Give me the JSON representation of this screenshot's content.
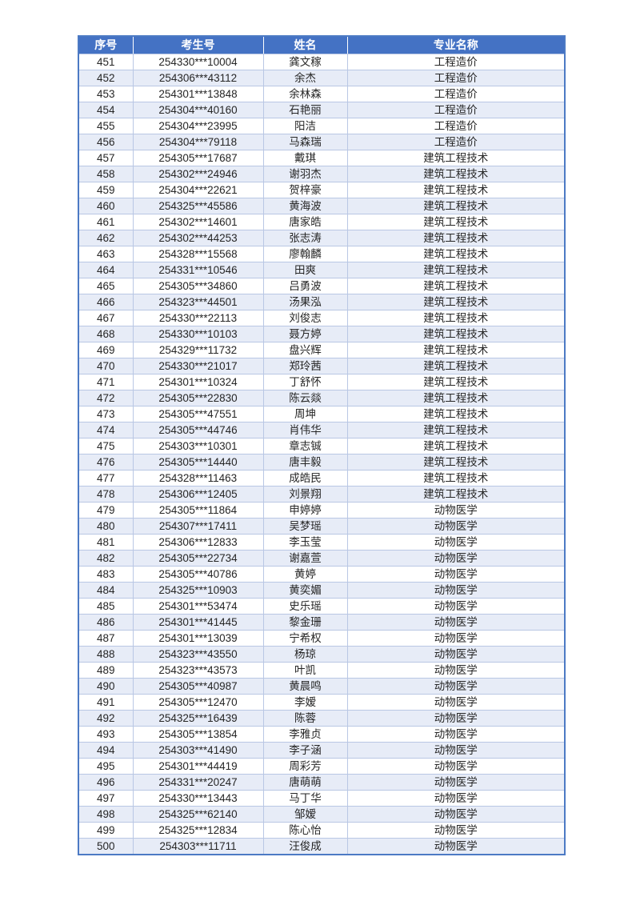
{
  "colors": {
    "header_bg": "#4472C4",
    "header_text": "#FFFFFF",
    "band_bg": "#E7ECF7",
    "grid_border": "#B9C7E4",
    "outer_border": "#4C7AC4",
    "body_text": "#262626"
  },
  "table": {
    "columns": [
      {
        "key": "index",
        "label": "序号"
      },
      {
        "key": "examno",
        "label": "考生号"
      },
      {
        "key": "name",
        "label": "姓名"
      },
      {
        "key": "major",
        "label": "专业名称"
      }
    ],
    "rows": [
      [
        "451",
        "254330***10004",
        "龚文稼",
        "工程造价"
      ],
      [
        "452",
        "254306***43112",
        "余杰",
        "工程造价"
      ],
      [
        "453",
        "254301***13848",
        "余林森",
        "工程造价"
      ],
      [
        "454",
        "254304***40160",
        "石艳丽",
        "工程造价"
      ],
      [
        "455",
        "254304***23995",
        "阳洁",
        "工程造价"
      ],
      [
        "456",
        "254304***79118",
        "马森瑞",
        "工程造价"
      ],
      [
        "457",
        "254305***17687",
        "戴琪",
        "建筑工程技术"
      ],
      [
        "458",
        "254302***24946",
        "谢羽杰",
        "建筑工程技术"
      ],
      [
        "459",
        "254304***22621",
        "贺梓豪",
        "建筑工程技术"
      ],
      [
        "460",
        "254325***45586",
        "黄海波",
        "建筑工程技术"
      ],
      [
        "461",
        "254302***14601",
        "唐家皓",
        "建筑工程技术"
      ],
      [
        "462",
        "254302***44253",
        "张志涛",
        "建筑工程技术"
      ],
      [
        "463",
        "254328***15568",
        "廖翰麟",
        "建筑工程技术"
      ],
      [
        "464",
        "254331***10546",
        "田爽",
        "建筑工程技术"
      ],
      [
        "465",
        "254305***34860",
        "吕勇波",
        "建筑工程技术"
      ],
      [
        "466",
        "254323***44501",
        "汤果泓",
        "建筑工程技术"
      ],
      [
        "467",
        "254330***22113",
        "刘俊志",
        "建筑工程技术"
      ],
      [
        "468",
        "254330***10103",
        "聂方婷",
        "建筑工程技术"
      ],
      [
        "469",
        "254329***11732",
        "盘兴辉",
        "建筑工程技术"
      ],
      [
        "470",
        "254330***21017",
        "郑玲茜",
        "建筑工程技术"
      ],
      [
        "471",
        "254301***10324",
        "丁舒怀",
        "建筑工程技术"
      ],
      [
        "472",
        "254305***22830",
        "陈云燚",
        "建筑工程技术"
      ],
      [
        "473",
        "254305***47551",
        "周坤",
        "建筑工程技术"
      ],
      [
        "474",
        "254305***44746",
        "肖伟华",
        "建筑工程技术"
      ],
      [
        "475",
        "254303***10301",
        "章志铖",
        "建筑工程技术"
      ],
      [
        "476",
        "254305***14440",
        "唐丰毅",
        "建筑工程技术"
      ],
      [
        "477",
        "254328***11463",
        "成皓民",
        "建筑工程技术"
      ],
      [
        "478",
        "254306***12405",
        "刘景翔",
        "建筑工程技术"
      ],
      [
        "479",
        "254305***11864",
        "申婷婷",
        "动物医学"
      ],
      [
        "480",
        "254307***17411",
        "吴梦瑶",
        "动物医学"
      ],
      [
        "481",
        "254306***12833",
        "李玉莹",
        "动物医学"
      ],
      [
        "482",
        "254305***22734",
        "谢嘉萱",
        "动物医学"
      ],
      [
        "483",
        "254305***40786",
        "黄婷",
        "动物医学"
      ],
      [
        "484",
        "254325***10903",
        "黄奕媚",
        "动物医学"
      ],
      [
        "485",
        "254301***53474",
        "史乐瑶",
        "动物医学"
      ],
      [
        "486",
        "254301***41445",
        "黎金珊",
        "动物医学"
      ],
      [
        "487",
        "254301***13039",
        "宁希权",
        "动物医学"
      ],
      [
        "488",
        "254323***43550",
        "杨琼",
        "动物医学"
      ],
      [
        "489",
        "254323***43573",
        "叶凯",
        "动物医学"
      ],
      [
        "490",
        "254305***40987",
        "黄晨鸣",
        "动物医学"
      ],
      [
        "491",
        "254305***12470",
        "李嫒",
        "动物医学"
      ],
      [
        "492",
        "254325***16439",
        "陈蓉",
        "动物医学"
      ],
      [
        "493",
        "254305***13854",
        "李雅贞",
        "动物医学"
      ],
      [
        "494",
        "254303***41490",
        "李子涵",
        "动物医学"
      ],
      [
        "495",
        "254301***44419",
        "周彩芳",
        "动物医学"
      ],
      [
        "496",
        "254331***20247",
        "唐萌萌",
        "动物医学"
      ],
      [
        "497",
        "254330***13443",
        "马丁华",
        "动物医学"
      ],
      [
        "498",
        "254325***62140",
        "邹嫒",
        "动物医学"
      ],
      [
        "499",
        "254325***12834",
        "陈心怡",
        "动物医学"
      ],
      [
        "500",
        "254303***11711",
        "汪俊成",
        "动物医学"
      ]
    ]
  }
}
